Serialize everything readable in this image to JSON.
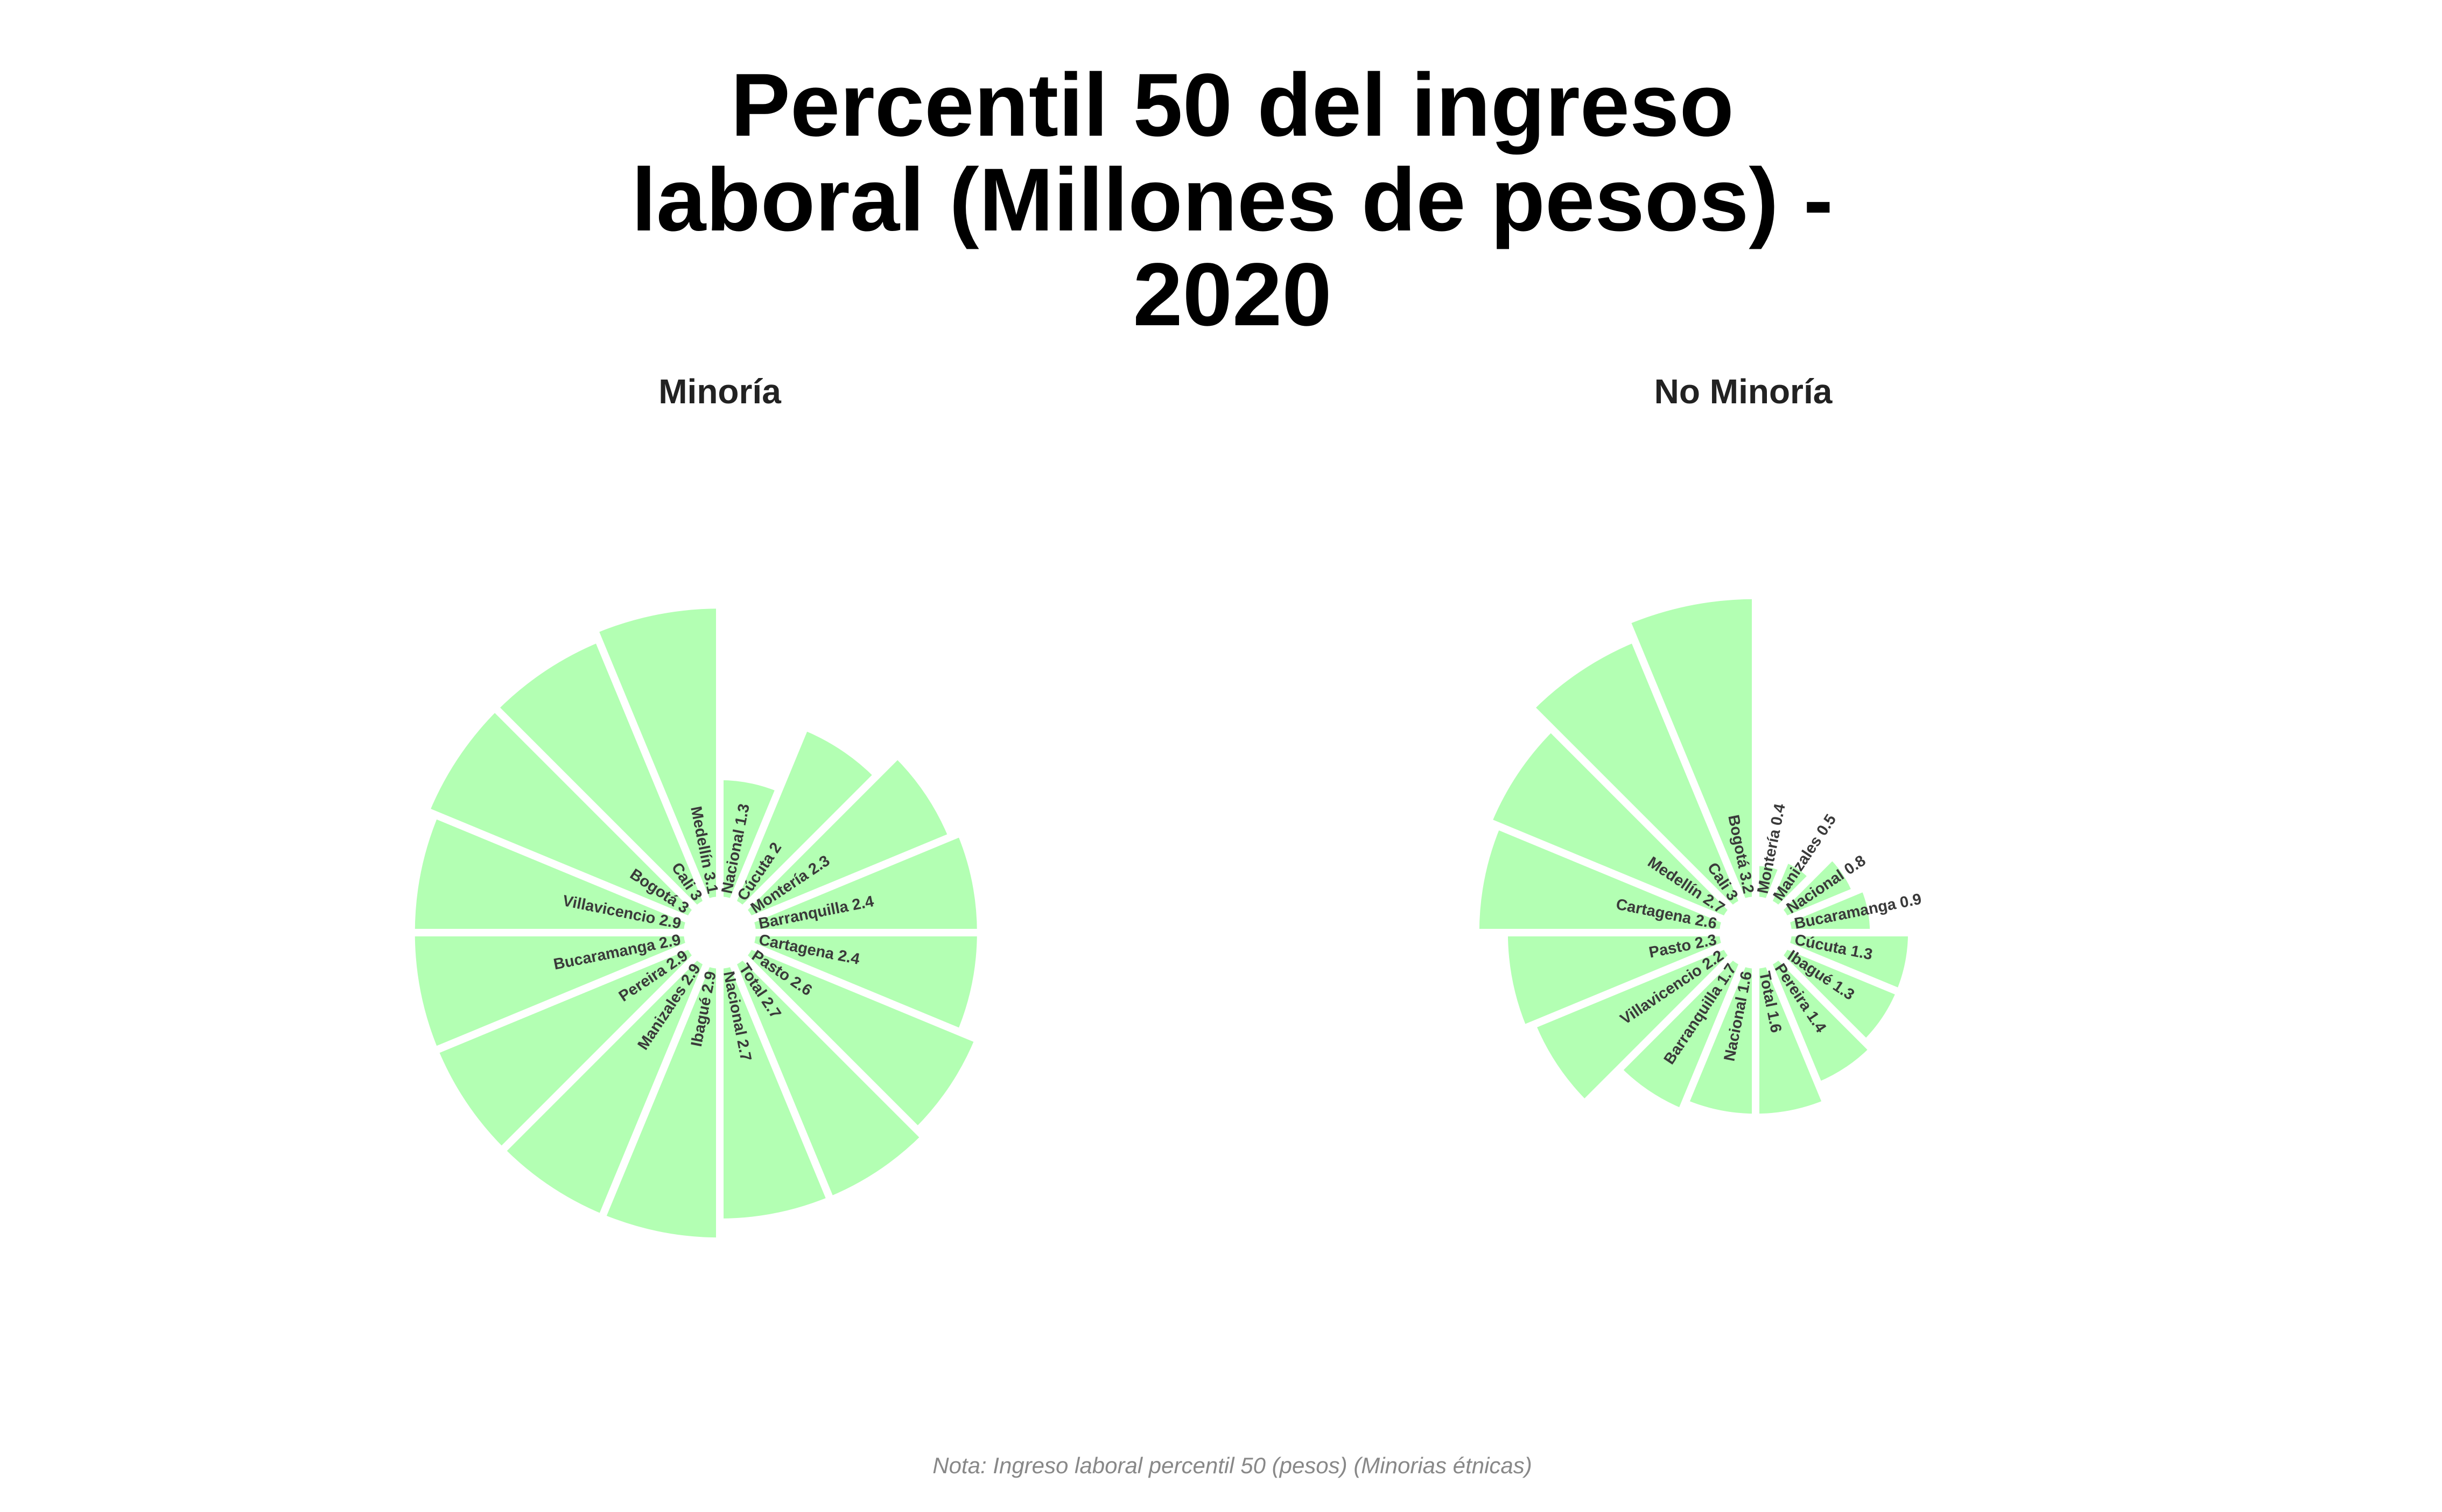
{
  "title_lines": [
    "Percentil 50 del ingreso",
    "laboral (Millones de pesos) -",
    "2020"
  ],
  "caption": "Nota: Ingreso laboral percentil 50 (pesos) (Minorias étnicas)",
  "colors": {
    "bar_fill": "#b3ffb3",
    "bar_stroke": "#ffffff",
    "label": "#3a3a3a"
  },
  "chart_data": [
    {
      "type": "bar",
      "coord": "polar",
      "title": "Minoría",
      "categories": [
        "Nacional",
        "Cúcuta",
        "Montería",
        "Barranquilla",
        "Cartagena",
        "Pasto",
        "Total",
        "Nacional",
        "Ibagué",
        "Manizales",
        "Pereira",
        "Bucaramanga",
        "Villavicencio",
        "Bogotá",
        "Cali",
        "Medellín"
      ],
      "values": [
        1.3,
        2,
        2.3,
        2.4,
        2.4,
        2.6,
        2.7,
        2.7,
        2.9,
        2.9,
        2.9,
        2.9,
        2.9,
        3,
        3,
        3.1
      ],
      "labels": [
        "Nacional 1.3",
        "Cúcuta 2",
        "Montería 2.3",
        "Barranquilla 2.4",
        "Cartagena 2.4",
        "Pasto 2.6",
        "Total 2.7",
        "Nacional 2.7",
        "Ibagué 2.9",
        "Manizales 2.9",
        "Pereira 2.9",
        "Bucaramanga 2.9",
        "Villavicencio 2.9",
        "Bogotá 3",
        "Cali 3",
        "Medellín 3.1"
      ]
    },
    {
      "type": "bar",
      "coord": "polar",
      "title": "No Minoría",
      "categories": [
        "Montería",
        "Manizales",
        "Nacional",
        "Bucaramanga",
        "Cúcuta",
        "Ibagué",
        "Pereira",
        "Total",
        "Nacional",
        "Barranquilla",
        "Villavicencio",
        "Pasto",
        "Cartagena",
        "Medellín",
        "Cali",
        "Bogotá"
      ],
      "values": [
        0.4,
        0.5,
        0.8,
        0.9,
        1.3,
        1.3,
        1.4,
        1.6,
        1.6,
        1.7,
        2.2,
        2.3,
        2.6,
        2.7,
        3,
        3.2
      ],
      "labels": [
        "Montería 0.4",
        "Manizales 0.5",
        "Nacional 0.8",
        "Bucaramanga 0.9",
        "Cúcuta 1.3",
        "Ibagué 1.3",
        "Pereira 1.4",
        "Total 1.6",
        "Nacional 1.6",
        "Barranquilla 1.7",
        "Villavicencio 2.2",
        "Pasto 2.3",
        "Cartagena 2.6",
        "Medellín 2.7",
        "Cali 3",
        "Bogotá 3.2"
      ]
    }
  ]
}
